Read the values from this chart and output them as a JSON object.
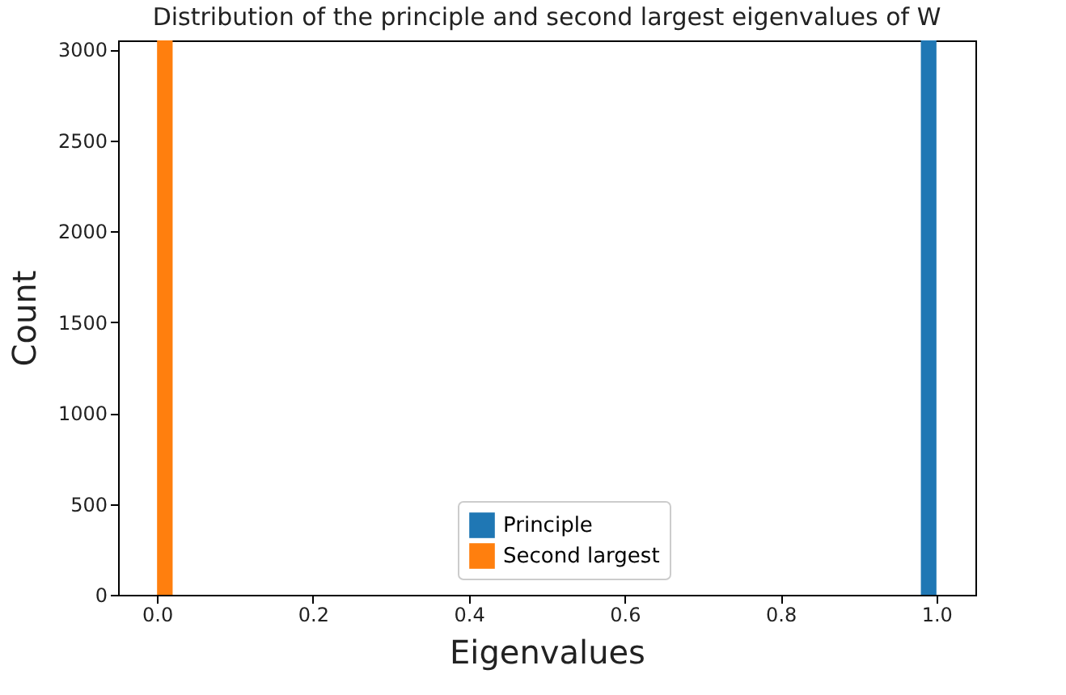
{
  "chart_data": {
    "type": "histogram",
    "title": "Distribution of the principle and second largest eigenvalues of W",
    "xlabel": "Eigenvalues",
    "ylabel": "Count",
    "bins": [
      0.0,
      0.02,
      0.98,
      1.0
    ],
    "series": [
      {
        "name": "Principle",
        "color": "#1f77b4",
        "values": [
          0,
          0,
          3050
        ]
      },
      {
        "name": "Second largest",
        "color": "#ff7f0e",
        "values": [
          3050,
          0,
          0
        ]
      }
    ],
    "xlim": [
      -0.05,
      1.05
    ],
    "xticks": [
      {
        "value": 0,
        "label": "0.0"
      },
      0.2,
      0.4,
      0.6,
      0.8,
      {
        "value": 1,
        "label": "1.0"
      }
    ],
    "ylim": [
      0,
      3050
    ],
    "yticks": [
      0,
      500,
      1000,
      1500,
      2000,
      2500,
      3000
    ],
    "legend": "bottom"
  }
}
